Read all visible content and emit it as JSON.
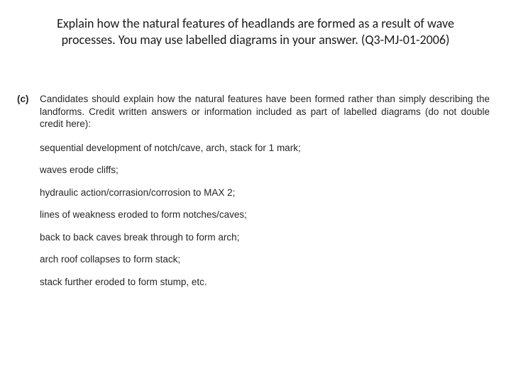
{
  "question": {
    "line1": "Explain how the natural features of headlands are formed as a result of wave",
    "line2": "processes. You may use  labelled diagrams in your answer. (Q3-MJ-01-2006)"
  },
  "mark_scheme": {
    "part_label": "(c)",
    "intro": "Candidates should explain how the natural features have been formed rather than simply describing the landforms.  Credit written answers or information included as part of labelled diagrams (do not double credit here):",
    "points": [
      "sequential development of notch/cave, arch, stack for 1 mark;",
      "waves erode cliffs;",
      "hydraulic action/corrasion/corrosion to MAX 2;",
      "lines of weakness eroded to form notches/caves;",
      "back to back caves break through to form arch;",
      "arch roof collapses to form stack;",
      "stack further eroded to form stump, etc."
    ]
  },
  "styling": {
    "background_color": "#ffffff",
    "question_font_size_pt": 14,
    "question_text_color": "#1a1a1a",
    "ms_font_size_pt": 10,
    "ms_text_color": "#262626",
    "ms_font_family": "Arial"
  }
}
